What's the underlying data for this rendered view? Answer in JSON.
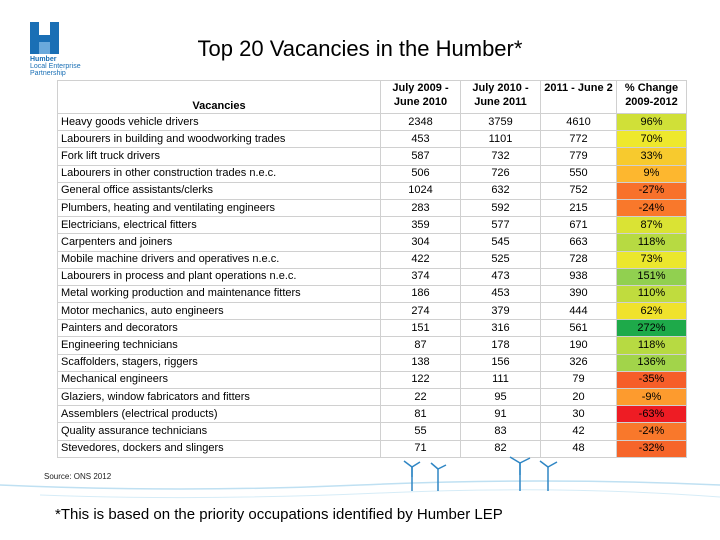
{
  "logo": {
    "line1": "Humber",
    "line2": "Local Enterprise",
    "line3": "Partnership"
  },
  "title": "Top 20 Vacancies in the Humber*",
  "table": {
    "header": [
      "Vacancies",
      "July 2009 -\nJune 2010",
      "July 2010 -\nJune 2011",
      "2011 - June 2",
      "% Change\n2009-2012"
    ],
    "rows": [
      [
        "Heavy goods vehicle drivers",
        "2348",
        "3759",
        "4610",
        "96%"
      ],
      [
        "Labourers in building and woodworking trades",
        "453",
        "1101",
        "772",
        "70%"
      ],
      [
        "Fork lift truck drivers",
        "587",
        "732",
        "779",
        "33%"
      ],
      [
        "Labourers in other construction trades n.e.c.",
        "506",
        "726",
        "550",
        "9%"
      ],
      [
        "General office assistants/clerks",
        "1024",
        "632",
        "752",
        "-27%"
      ],
      [
        "Plumbers, heating and ventilating engineers",
        "283",
        "592",
        "215",
        "-24%"
      ],
      [
        "Electricians, electrical fitters",
        "359",
        "577",
        "671",
        "87%"
      ],
      [
        "Carpenters and joiners",
        "304",
        "545",
        "663",
        "118%"
      ],
      [
        "Mobile machine drivers and operatives n.e.c.",
        "422",
        "525",
        "728",
        "73%"
      ],
      [
        "Labourers in process and plant operations n.e.c.",
        "374",
        "473",
        "938",
        "151%"
      ],
      [
        "Metal working production and maintenance fitters",
        "186",
        "453",
        "390",
        "110%"
      ],
      [
        "Motor mechanics, auto engineers",
        "274",
        "379",
        "444",
        "62%"
      ],
      [
        "Painters and decorators",
        "151",
        "316",
        "561",
        "272%"
      ],
      [
        "Engineering technicians",
        "87",
        "178",
        "190",
        "118%"
      ],
      [
        "Scaffolders, stagers, riggers",
        "138",
        "156",
        "326",
        "136%"
      ],
      [
        "Mechanical engineers",
        "122",
        "111",
        "79",
        "-35%"
      ],
      [
        "Glaziers, window fabricators and fitters",
        "22",
        "95",
        "20",
        "-9%"
      ],
      [
        "Assemblers (electrical products)",
        "81",
        "91",
        "30",
        "-63%"
      ],
      [
        "Quality assurance technicians",
        "55",
        "83",
        "42",
        "-24%"
      ],
      [
        "Stevedores, dockers and slingers",
        "71",
        "82",
        "48",
        "-32%"
      ]
    ]
  },
  "source": "Source: ONS 2012",
  "footnote": "*This is based on the priority occupations identified by Humber LEP"
}
